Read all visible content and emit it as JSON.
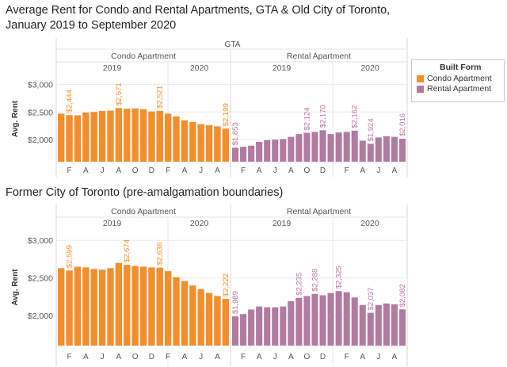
{
  "title": "Average Rent for Condo and Rental Apartments, GTA & Old City of Toronto, January 2019 to September 2020",
  "legend": {
    "title": "Built Form",
    "items": [
      {
        "label": "Condo Apartment",
        "color": "#F28E2B"
      },
      {
        "label": "Rental Apartment",
        "color": "#B07AA1"
      }
    ]
  },
  "chart_data": [
    {
      "type": "bar",
      "title": "",
      "region_label": "GTA",
      "ylabel": "Avg. Rent",
      "yticks": [
        "$3,000",
        "$2,500",
        "$2,000"
      ],
      "ytick_values": [
        3000,
        2500,
        2000
      ],
      "ylim": [
        1600,
        3150
      ],
      "groups": [
        "Condo Apartment",
        "Rental Apartment"
      ],
      "years": [
        "2019",
        "2020"
      ],
      "month_ticks": [
        "F",
        "A",
        "J",
        "A",
        "O",
        "D",
        "F",
        "A",
        "J",
        "A"
      ],
      "series": [
        {
          "name": "Condo Apartment",
          "color": "#F28E2B",
          "values": [
            2470,
            2444,
            2440,
            2490,
            2500,
            2520,
            2525,
            2571,
            2560,
            2565,
            2550,
            2510,
            2521,
            2470,
            2420,
            2350,
            2320,
            2280,
            2260,
            2240,
            2199
          ],
          "data_labels": [
            {
              "index": 1,
              "text": "$2,444"
            },
            {
              "index": 7,
              "text": "$2,571"
            },
            {
              "index": 12,
              "text": "$2,521"
            },
            {
              "index": 20,
              "text": "$2,199"
            }
          ]
        },
        {
          "name": "Rental Apartment",
          "color": "#B07AA1",
          "values": [
            1853,
            1870,
            1890,
            1960,
            1990,
            2000,
            2010,
            2050,
            2100,
            2124,
            2140,
            2170,
            2100,
            2130,
            2140,
            2162,
            1980,
            1924,
            2040,
            2060,
            2050,
            2016
          ],
          "data_labels": [
            {
              "index": 0,
              "text": "$1,853"
            },
            {
              "index": 9,
              "text": "$2,124"
            },
            {
              "index": 11,
              "text": "$2,170"
            },
            {
              "index": 15,
              "text": "$2,162"
            },
            {
              "index": 17,
              "text": "$1,924"
            },
            {
              "index": 21,
              "text": "$2,016"
            }
          ]
        }
      ]
    },
    {
      "type": "bar",
      "title": "Former City of Toronto (pre-amalgamation boundaries)",
      "ylabel": "Avg. Rent",
      "yticks": [
        "$3,000",
        "$2,500",
        "$2,000"
      ],
      "ytick_values": [
        3000,
        2500,
        2000
      ],
      "ylim": [
        1600,
        3150
      ],
      "groups": [
        "Condo Apartment",
        "Rental Apartment"
      ],
      "years": [
        "2019",
        "2020"
      ],
      "month_ticks": [
        "F",
        "A",
        "J",
        "A",
        "O",
        "D",
        "F",
        "A",
        "J",
        "A"
      ],
      "series": [
        {
          "name": "Condo Apartment",
          "color": "#F28E2B",
          "values": [
            2630,
            2599,
            2650,
            2640,
            2620,
            2610,
            2630,
            2700,
            2674,
            2660,
            2650,
            2640,
            2636,
            2590,
            2510,
            2460,
            2400,
            2350,
            2300,
            2260,
            2222
          ],
          "data_labels": [
            {
              "index": 1,
              "text": "$2,599"
            },
            {
              "index": 8,
              "text": "$2,674"
            },
            {
              "index": 12,
              "text": "$2,636"
            },
            {
              "index": 20,
              "text": "$2,222"
            }
          ]
        },
        {
          "name": "Rental Apartment",
          "color": "#B07AA1",
          "values": [
            1989,
            2020,
            2080,
            2120,
            2110,
            2110,
            2120,
            2190,
            2235,
            2260,
            2288,
            2270,
            2300,
            2325,
            2310,
            2240,
            2140,
            2037,
            2140,
            2160,
            2150,
            2082
          ],
          "data_labels": [
            {
              "index": 0,
              "text": "$1,989"
            },
            {
              "index": 8,
              "text": "$2,235"
            },
            {
              "index": 10,
              "text": "$2,288"
            },
            {
              "index": 13,
              "text": "$2,325"
            },
            {
              "index": 17,
              "text": "$2,037"
            },
            {
              "index": 21,
              "text": "$2,082"
            }
          ]
        }
      ]
    }
  ]
}
